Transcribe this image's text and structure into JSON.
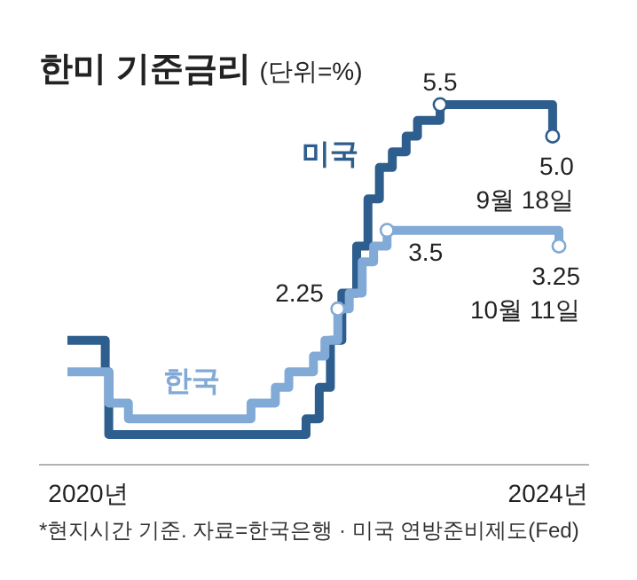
{
  "chart_data": {
    "type": "step",
    "title": "한미 기준금리",
    "subtitle": "(단위=%)",
    "xlim": [
      "2019-07",
      "2025-02"
    ],
    "tick_labels": "x",
    "xticks": [
      {
        "value": "2020-01",
        "label": "2020년"
      },
      {
        "value": "2024-09",
        "label": "2024년"
      }
    ],
    "series": [
      {
        "name": "미국",
        "color": "#2d5e8e",
        "x": [
          "2019-10-15",
          "2020-03-03",
          "2020-03-16",
          "2022-03-17",
          "2022-05-05",
          "2022-06-16",
          "2022-07-28",
          "2022-09-22",
          "2022-11-03",
          "2022-12-15",
          "2023-02-02",
          "2023-03-23",
          "2023-05-04",
          "2023-07-27",
          "2024-09-18"
        ],
        "values": [
          1.75,
          1.25,
          0.25,
          0.5,
          1.0,
          1.75,
          2.5,
          3.25,
          4.0,
          4.5,
          4.75,
          5.0,
          5.25,
          5.5,
          5.0
        ],
        "value_labels": [
          null,
          null,
          null,
          null,
          null,
          null,
          null,
          null,
          null,
          null,
          null,
          null,
          null,
          "5.5",
          "5.0"
        ]
      },
      {
        "name": "한국",
        "color": "#82aad6",
        "x": [
          "2019-10-15",
          "2020-03-16",
          "2020-05-28",
          "2021-08-26",
          "2021-11-25",
          "2022-01-14",
          "2022-04-14",
          "2022-05-26",
          "2022-07-13",
          "2022-08-25",
          "2022-10-12",
          "2022-11-24",
          "2023-01-13",
          "2024-10-11"
        ],
        "values": [
          1.25,
          0.75,
          0.5,
          0.75,
          1.0,
          1.25,
          1.5,
          1.75,
          2.25,
          2.5,
          3.0,
          3.25,
          3.5,
          3.25
        ],
        "value_labels": [
          null,
          null,
          null,
          null,
          null,
          null,
          null,
          null,
          "2.25",
          null,
          null,
          null,
          "3.5",
          "3.25"
        ]
      }
    ],
    "annotations": [
      {
        "text": "9월 18일",
        "x": "2024-09-18",
        "y": 5.0
      },
      {
        "text": "10월 11일",
        "x": "2024-10-11",
        "y": 3.25
      },
      "*현지시간 기준. 자료=한국은행 · 미국 연방준비제도(Fed)"
    ]
  }
}
